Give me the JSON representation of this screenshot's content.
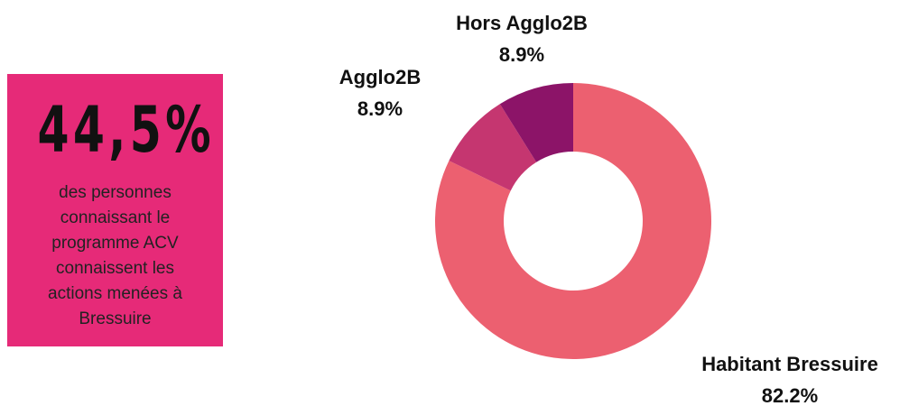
{
  "callout": {
    "value": "44,5%",
    "text": "des personnes connaissant le programme ACV connaissent les actions menées à Bressuire"
  },
  "chart_data": {
    "type": "donut",
    "categories": [
      "Habitant Bressuire",
      "Agglo2B",
      "Hors Agglo2B"
    ],
    "values": [
      82.2,
      8.9,
      8.9
    ],
    "value_labels": [
      "82.2%",
      "8.9%",
      "8.9%"
    ],
    "colors": [
      "#ec6070",
      "#c53670",
      "#8c1468"
    ]
  }
}
